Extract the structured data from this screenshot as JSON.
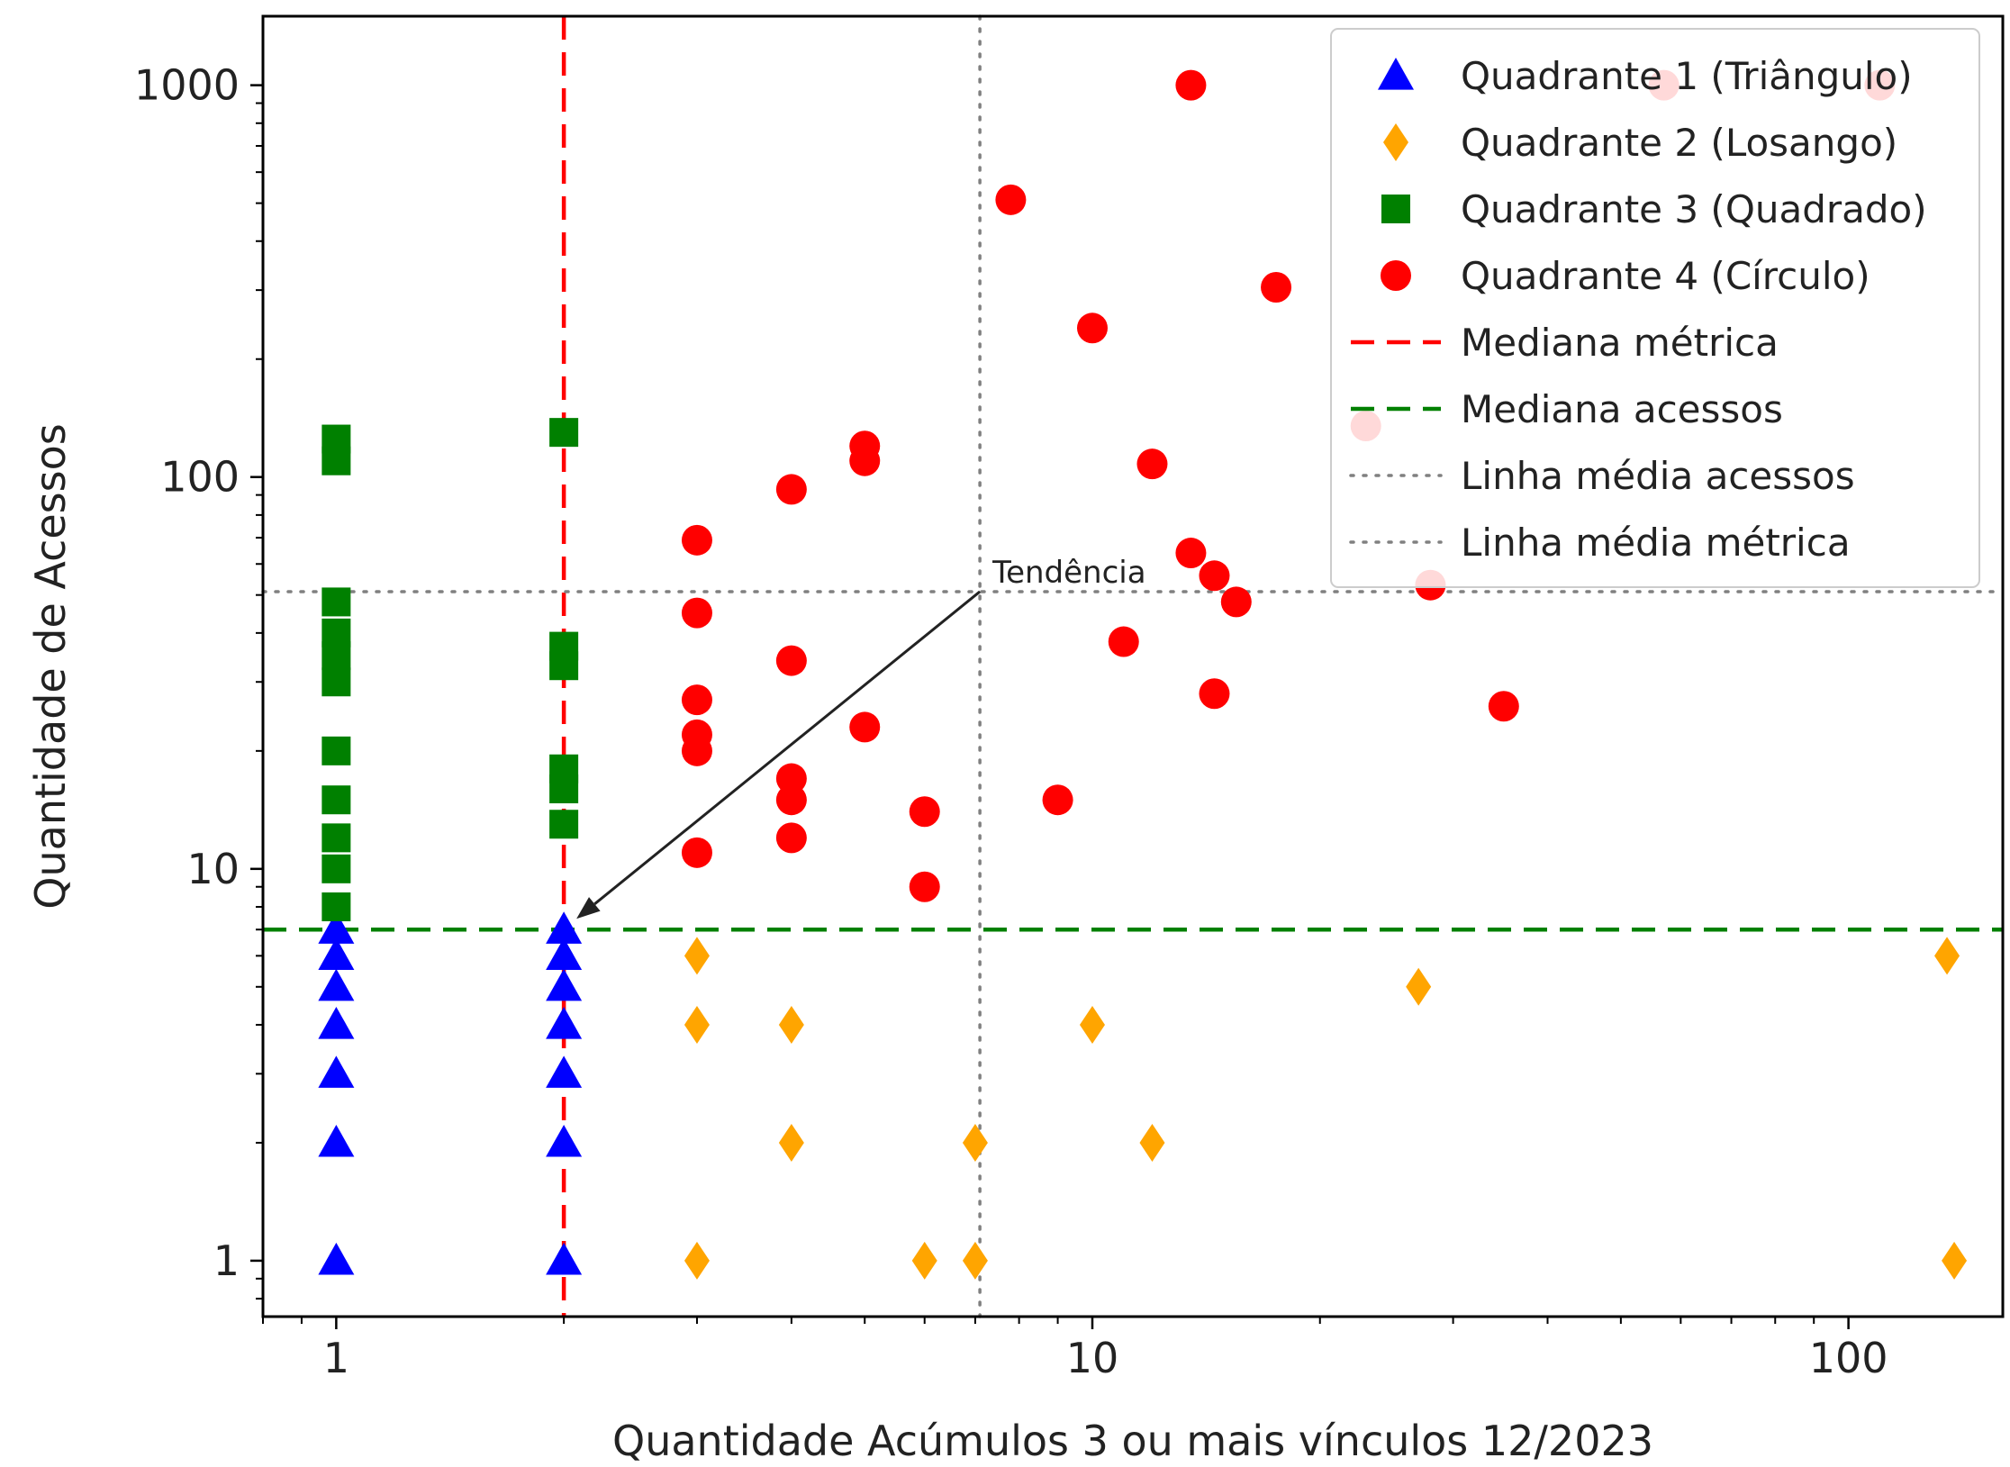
{
  "chart_data": {
    "type": "scatter",
    "xlabel": "Quantidade Acúmulos 3 ou mais vínculos 12/2023",
    "ylabel": "Quantidade de Acessos",
    "xscale": "log",
    "yscale": "log",
    "xlim": [
      0.8,
      160
    ],
    "ylim": [
      0.72,
      1500
    ],
    "xticks": [
      {
        "value": 1,
        "label": "1"
      },
      {
        "value": 10,
        "label": "10"
      },
      {
        "value": 100,
        "label": "100"
      }
    ],
    "yticks": [
      {
        "value": 1,
        "label": "1"
      },
      {
        "value": 10,
        "label": "10"
      },
      {
        "value": 100,
        "label": "100"
      },
      {
        "value": 1000,
        "label": "1000"
      }
    ],
    "grid": false,
    "legend_position": "top-right",
    "series": [
      {
        "name": "Quadrante 1 (Triângulo)",
        "marker": "triangle",
        "color": "#0000ff",
        "points": [
          [
            1,
            1
          ],
          [
            1,
            2
          ],
          [
            1,
            3
          ],
          [
            1,
            4
          ],
          [
            1,
            5
          ],
          [
            1,
            6
          ],
          [
            1,
            7
          ],
          [
            2,
            1
          ],
          [
            2,
            2
          ],
          [
            2,
            3
          ],
          [
            2,
            4
          ],
          [
            2,
            5
          ],
          [
            2,
            6
          ],
          [
            2,
            7
          ]
        ]
      },
      {
        "name": "Quadrante 2 (Losango)",
        "marker": "diamond",
        "color": "#ffa500",
        "points": [
          [
            3,
            1
          ],
          [
            3,
            4
          ],
          [
            3,
            6
          ],
          [
            4,
            2
          ],
          [
            4,
            4
          ],
          [
            6,
            1
          ],
          [
            7,
            1
          ],
          [
            7,
            2
          ],
          [
            10,
            4
          ],
          [
            12,
            2
          ],
          [
            27,
            5
          ],
          [
            135,
            6
          ],
          [
            138,
            1
          ]
        ]
      },
      {
        "name": "Quadrante 3 (Quadrado)",
        "marker": "square",
        "color": "#008000",
        "points": [
          [
            1,
            8
          ],
          [
            1,
            10
          ],
          [
            1,
            12
          ],
          [
            1,
            15
          ],
          [
            1,
            20
          ],
          [
            1,
            30
          ],
          [
            1,
            35
          ],
          [
            1,
            40
          ],
          [
            1,
            48
          ],
          [
            1,
            110
          ],
          [
            1,
            125
          ],
          [
            2,
            13
          ],
          [
            2,
            16
          ],
          [
            2,
            18
          ],
          [
            2,
            33
          ],
          [
            2,
            37
          ],
          [
            2,
            130
          ]
        ]
      },
      {
        "name": "Quadrante 4 (Círculo)",
        "marker": "circle",
        "color": "#ff0000",
        "points": [
          [
            3,
            11
          ],
          [
            3,
            20
          ],
          [
            3,
            22
          ],
          [
            3,
            27
          ],
          [
            3,
            45
          ],
          [
            3,
            69
          ],
          [
            4,
            12
          ],
          [
            4,
            15
          ],
          [
            4,
            17
          ],
          [
            4,
            34
          ],
          [
            4,
            93
          ],
          [
            5,
            23
          ],
          [
            5,
            110
          ],
          [
            5,
            120
          ],
          [
            6,
            9
          ],
          [
            6,
            14
          ],
          [
            7.8,
            510
          ],
          [
            9,
            15
          ],
          [
            10,
            240
          ],
          [
            11,
            38
          ],
          [
            12,
            108
          ],
          [
            13.5,
            1000
          ],
          [
            13.5,
            64
          ],
          [
            14.5,
            56
          ],
          [
            14.5,
            28
          ],
          [
            15.5,
            48
          ],
          [
            17.5,
            305
          ],
          [
            23,
            135
          ],
          [
            28,
            53
          ],
          [
            35,
            26
          ],
          [
            57,
            1000
          ],
          [
            110,
            1000
          ]
        ]
      }
    ],
    "reference_lines": [
      {
        "name": "Mediana métrica",
        "orientation": "vertical",
        "value": 2,
        "style": "dashed",
        "color": "#ff0000"
      },
      {
        "name": "Mediana acessos",
        "orientation": "horizontal",
        "value": 7,
        "style": "dashed",
        "color": "#008000"
      },
      {
        "name": "Linha média acessos",
        "orientation": "horizontal",
        "value": 51,
        "style": "dotted",
        "color": "#808080"
      },
      {
        "name": "Linha média métrica",
        "orientation": "vertical",
        "value": 7.1,
        "style": "dotted",
        "color": "#808080"
      }
    ],
    "annotation": {
      "text": "Tendência",
      "from": [
        7.1,
        51
      ],
      "to": [
        2,
        7
      ]
    }
  }
}
